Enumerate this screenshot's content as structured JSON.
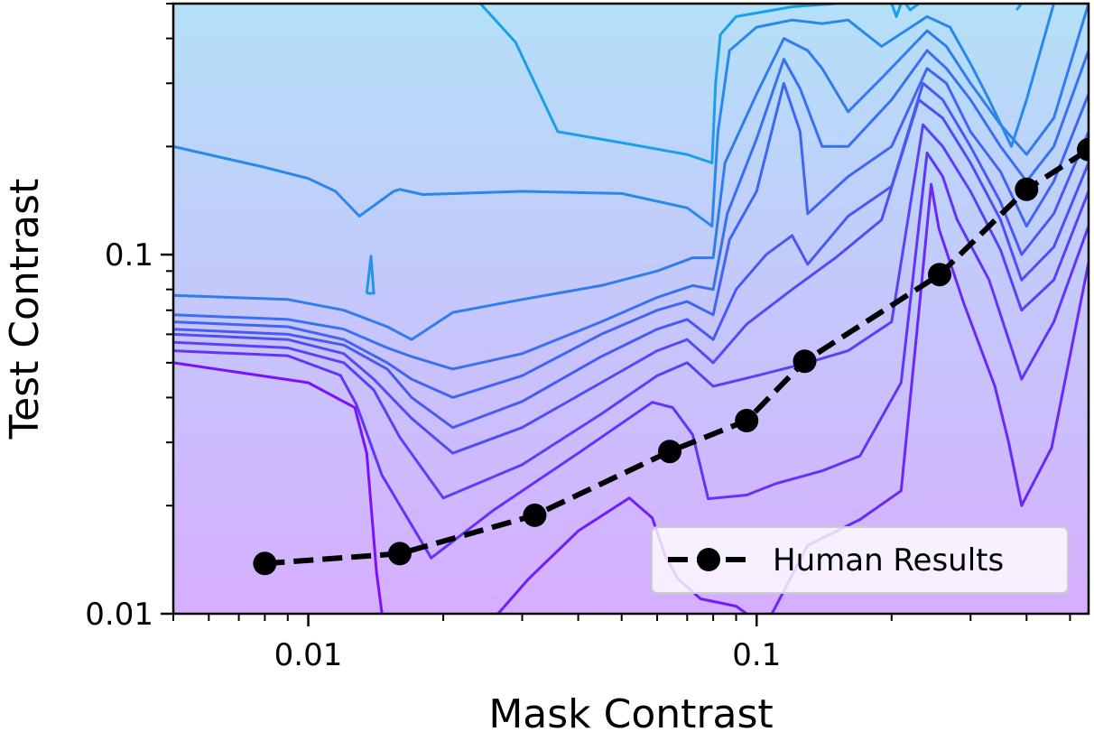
{
  "chart_data": {
    "type": "contour-line",
    "xlabel": "Mask Contrast",
    "ylabel": "Test Contrast",
    "x_scale": "log",
    "y_scale": "log",
    "xlim": [
      0.005,
      0.55
    ],
    "ylim": [
      0.01,
      0.5
    ],
    "x_ticks": [
      {
        "value": 0.01,
        "label": "0.01"
      },
      {
        "value": 0.1,
        "label": "0.1"
      }
    ],
    "y_ticks": [
      {
        "value": 0.01,
        "label": "0.01"
      },
      {
        "value": 0.1,
        "label": "0.1"
      }
    ],
    "legend": {
      "position": "lower-right",
      "entries": [
        "Human Results"
      ]
    },
    "grid": false,
    "colors": {
      "human": "#000000",
      "fill_low": "#d6aeff",
      "fill_high": "#b4e0f8",
      "contour_low": "#7a10ff",
      "contour_high": "#1aa0e8"
    },
    "series": [
      {
        "name": "Human Results",
        "style": "dashed-circle-markers",
        "points": [
          {
            "x": 0.008,
            "y": 0.0138
          },
          {
            "x": 0.016,
            "y": 0.0147
          },
          {
            "x": 0.032,
            "y": 0.0188
          },
          {
            "x": 0.064,
            "y": 0.0283
          },
          {
            "x": 0.095,
            "y": 0.0345
          },
          {
            "x": 0.128,
            "y": 0.0505
          },
          {
            "x": 0.256,
            "y": 0.088
          },
          {
            "x": 0.4,
            "y": 0.152
          },
          {
            "x": 0.55,
            "y": 0.196
          }
        ]
      }
    ],
    "contours": [
      {
        "points": [
          [
            0.005,
            0.05
          ],
          [
            0.01,
            0.044
          ],
          [
            0.0127,
            0.0375
          ],
          [
            0.0135,
            0.028
          ],
          [
            0.0142,
            0.013
          ],
          [
            0.0146,
            0.01
          ]
        ]
      },
      {
        "points": [
          [
            0.0265,
            0.01
          ],
          [
            0.031,
            0.0125
          ],
          [
            0.04,
            0.017
          ],
          [
            0.052,
            0.021
          ],
          [
            0.0585,
            0.0185
          ],
          [
            0.0625,
            0.0145
          ],
          [
            0.0668,
            0.0125
          ],
          [
            0.075,
            0.011
          ],
          [
            0.09,
            0.0105
          ],
          [
            0.095,
            0.01
          ]
        ]
      },
      {
        "points": [
          [
            0.1082,
            0.01
          ],
          [
            0.13,
            0.0155
          ],
          [
            0.17,
            0.0183
          ],
          [
            0.21,
            0.022
          ],
          [
            0.23,
            0.069
          ],
          [
            0.245,
            0.157
          ],
          [
            0.255,
            0.118
          ],
          [
            0.29,
            0.073
          ],
          [
            0.34,
            0.043
          ],
          [
            0.365,
            0.03
          ],
          [
            0.39,
            0.02
          ],
          [
            0.455,
            0.029
          ],
          [
            0.55,
            0.095
          ]
        ]
      },
      {
        "points": [
          [
            0.005,
            0.054
          ],
          [
            0.009,
            0.0523
          ],
          [
            0.0118,
            0.0461
          ],
          [
            0.0128,
            0.0383
          ],
          [
            0.0146,
            0.0243
          ],
          [
            0.0188,
            0.0143
          ],
          [
            0.026,
            0.0195
          ],
          [
            0.04,
            0.028
          ],
          [
            0.0585,
            0.0388
          ],
          [
            0.065,
            0.0375
          ],
          [
            0.072,
            0.0315
          ],
          [
            0.078,
            0.0209
          ],
          [
            0.095,
            0.0214
          ],
          [
            0.11,
            0.023
          ],
          [
            0.14,
            0.025
          ],
          [
            0.17,
            0.0275
          ],
          [
            0.21,
            0.044
          ],
          [
            0.24,
            0.192
          ],
          [
            0.26,
            0.165
          ],
          [
            0.28,
            0.125
          ],
          [
            0.33,
            0.085
          ],
          [
            0.37,
            0.055
          ],
          [
            0.39,
            0.045
          ],
          [
            0.46,
            0.065
          ],
          [
            0.55,
            0.12
          ]
        ]
      },
      {
        "points": [
          [
            0.005,
            0.057
          ],
          [
            0.009,
            0.055
          ],
          [
            0.012,
            0.05
          ],
          [
            0.014,
            0.042
          ],
          [
            0.016,
            0.031
          ],
          [
            0.02,
            0.021
          ],
          [
            0.03,
            0.026
          ],
          [
            0.045,
            0.036
          ],
          [
            0.06,
            0.046
          ],
          [
            0.07,
            0.05
          ],
          [
            0.08,
            0.043
          ],
          [
            0.1,
            0.046
          ],
          [
            0.13,
            0.05
          ],
          [
            0.16,
            0.054
          ],
          [
            0.2,
            0.065
          ],
          [
            0.235,
            0.23
          ],
          [
            0.26,
            0.2
          ],
          [
            0.3,
            0.15
          ],
          [
            0.35,
            0.103
          ],
          [
            0.39,
            0.07
          ],
          [
            0.46,
            0.085
          ],
          [
            0.55,
            0.15
          ]
        ]
      },
      {
        "points": [
          [
            0.005,
            0.06
          ],
          [
            0.009,
            0.058
          ],
          [
            0.012,
            0.053
          ],
          [
            0.014,
            0.045
          ],
          [
            0.017,
            0.035
          ],
          [
            0.021,
            0.028
          ],
          [
            0.03,
            0.033
          ],
          [
            0.045,
            0.044
          ],
          [
            0.06,
            0.054
          ],
          [
            0.07,
            0.058
          ],
          [
            0.08,
            0.05
          ],
          [
            0.095,
            0.064
          ],
          [
            0.12,
            0.08
          ],
          [
            0.15,
            0.098
          ],
          [
            0.19,
            0.125
          ],
          [
            0.23,
            0.27
          ],
          [
            0.26,
            0.24
          ],
          [
            0.3,
            0.18
          ],
          [
            0.35,
            0.125
          ],
          [
            0.39,
            0.085
          ],
          [
            0.46,
            0.105
          ],
          [
            0.55,
            0.18
          ]
        ]
      },
      {
        "points": [
          [
            0.005,
            0.062
          ],
          [
            0.009,
            0.06
          ],
          [
            0.012,
            0.056
          ],
          [
            0.015,
            0.048
          ],
          [
            0.017,
            0.04
          ],
          [
            0.021,
            0.033
          ],
          [
            0.03,
            0.039
          ],
          [
            0.045,
            0.052
          ],
          [
            0.06,
            0.062
          ],
          [
            0.07,
            0.066
          ],
          [
            0.08,
            0.058
          ],
          [
            0.09,
            0.08
          ],
          [
            0.105,
            0.1
          ],
          [
            0.12,
            0.113
          ],
          [
            0.13,
            0.094
          ],
          [
            0.16,
            0.128
          ],
          [
            0.2,
            0.155
          ],
          [
            0.235,
            0.3
          ],
          [
            0.26,
            0.27
          ],
          [
            0.3,
            0.2
          ],
          [
            0.35,
            0.14
          ],
          [
            0.39,
            0.1
          ],
          [
            0.46,
            0.13
          ],
          [
            0.55,
            0.22
          ]
        ]
      },
      {
        "points": [
          [
            0.005,
            0.065
          ],
          [
            0.009,
            0.063
          ],
          [
            0.012,
            0.058
          ],
          [
            0.015,
            0.05
          ],
          [
            0.017,
            0.045
          ],
          [
            0.021,
            0.04
          ],
          [
            0.03,
            0.046
          ],
          [
            0.045,
            0.06
          ],
          [
            0.06,
            0.07
          ],
          [
            0.07,
            0.074
          ],
          [
            0.08,
            0.068
          ],
          [
            0.087,
            0.11
          ],
          [
            0.1,
            0.15
          ],
          [
            0.115,
            0.3
          ],
          [
            0.125,
            0.22
          ],
          [
            0.13,
            0.13
          ],
          [
            0.16,
            0.165
          ],
          [
            0.2,
            0.2
          ],
          [
            0.24,
            0.33
          ],
          [
            0.265,
            0.3
          ],
          [
            0.3,
            0.22
          ],
          [
            0.35,
            0.17
          ],
          [
            0.4,
            0.12
          ],
          [
            0.46,
            0.16
          ],
          [
            0.55,
            0.28
          ]
        ]
      },
      {
        "points": [
          [
            0.005,
            0.068
          ],
          [
            0.009,
            0.066
          ],
          [
            0.012,
            0.062
          ],
          [
            0.015,
            0.055
          ],
          [
            0.017,
            0.052
          ],
          [
            0.021,
            0.048
          ],
          [
            0.03,
            0.053
          ],
          [
            0.045,
            0.065
          ],
          [
            0.06,
            0.076
          ],
          [
            0.072,
            0.082
          ],
          [
            0.08,
            0.08
          ],
          [
            0.086,
            0.13
          ],
          [
            0.1,
            0.21
          ],
          [
            0.115,
            0.35
          ],
          [
            0.125,
            0.29
          ],
          [
            0.14,
            0.2
          ],
          [
            0.16,
            0.2
          ],
          [
            0.2,
            0.27
          ],
          [
            0.24,
            0.37
          ],
          [
            0.265,
            0.33
          ],
          [
            0.3,
            0.27
          ],
          [
            0.35,
            0.2
          ],
          [
            0.4,
            0.16
          ],
          [
            0.46,
            0.2
          ],
          [
            0.55,
            0.37
          ]
        ]
      },
      {
        "points": [
          [
            0.005,
            0.077
          ],
          [
            0.009,
            0.075
          ],
          [
            0.012,
            0.07
          ],
          [
            0.015,
            0.063
          ],
          [
            0.017,
            0.058
          ],
          [
            0.021,
            0.069
          ],
          [
            0.03,
            0.075
          ],
          [
            0.045,
            0.082
          ],
          [
            0.06,
            0.09
          ],
          [
            0.072,
            0.098
          ],
          [
            0.08,
            0.098
          ],
          [
            0.085,
            0.18
          ],
          [
            0.1,
            0.28
          ],
          [
            0.115,
            0.4
          ],
          [
            0.13,
            0.37
          ],
          [
            0.14,
            0.33
          ],
          [
            0.16,
            0.25
          ],
          [
            0.19,
            0.31
          ],
          [
            0.24,
            0.42
          ],
          [
            0.265,
            0.38
          ],
          [
            0.3,
            0.3
          ],
          [
            0.35,
            0.23
          ],
          [
            0.4,
            0.19
          ],
          [
            0.46,
            0.24
          ],
          [
            0.55,
            0.5
          ]
        ]
      },
      {
        "points": [
          [
            0.005,
            0.2
          ],
          [
            0.008,
            0.175
          ],
          [
            0.01,
            0.163
          ],
          [
            0.0115,
            0.15
          ],
          [
            0.013,
            0.128
          ],
          [
            0.0155,
            0.15
          ],
          [
            0.016,
            0.152
          ],
          [
            0.018,
            0.147
          ],
          [
            0.03,
            0.15
          ],
          [
            0.05,
            0.148
          ],
          [
            0.07,
            0.135
          ],
          [
            0.0795,
            0.12
          ],
          [
            0.082,
            0.22
          ],
          [
            0.087,
            0.37
          ],
          [
            0.1,
            0.43
          ],
          [
            0.12,
            0.45
          ],
          [
            0.14,
            0.44
          ],
          [
            0.16,
            0.45
          ],
          [
            0.19,
            0.38
          ],
          [
            0.24,
            0.46
          ],
          [
            0.27,
            0.43
          ],
          [
            0.3,
            0.34
          ],
          [
            0.33,
            0.27
          ],
          [
            0.37,
            0.2
          ],
          [
            0.4,
            0.27
          ],
          [
            0.46,
            0.5
          ]
        ]
      },
      {
        "points": [
          [
            0.0135,
            0.078
          ],
          [
            0.0138,
            0.099
          ],
          [
            0.014,
            0.078
          ],
          [
            0.0135,
            0.078
          ]
        ]
      },
      {
        "points": [
          [
            0.0242,
            0.5
          ],
          [
            0.029,
            0.39
          ],
          [
            0.036,
            0.22
          ],
          [
            0.05,
            0.205
          ],
          [
            0.07,
            0.19
          ],
          [
            0.0795,
            0.18
          ],
          [
            0.081,
            0.3
          ],
          [
            0.083,
            0.41
          ],
          [
            0.09,
            0.46
          ],
          [
            0.12,
            0.49
          ],
          [
            0.15,
            0.5
          ]
        ]
      },
      {
        "points": [
          [
            0.2,
            0.5
          ],
          [
            0.205,
            0.46
          ],
          [
            0.21,
            0.5
          ]
        ]
      },
      {
        "points": [
          [
            0.215,
            0.5
          ],
          [
            0.22,
            0.48
          ],
          [
            0.23,
            0.5
          ]
        ]
      },
      {
        "points": [
          [
            0.38,
            0.48
          ],
          [
            0.39,
            0.5
          ]
        ]
      }
    ]
  }
}
